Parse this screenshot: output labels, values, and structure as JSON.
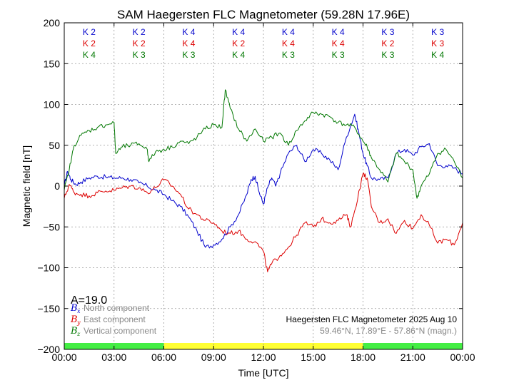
{
  "chart_data": {
    "type": "line",
    "title": "SAM Haegersten FLC Magnetometer (59.28N 17.96E)",
    "xlabel": "Time [UTC]",
    "ylabel": "Magnetic field [nT]",
    "xlim": [
      0,
      24
    ],
    "ylim": [
      -200,
      200
    ],
    "x_tick_labels": [
      "00:00",
      "03:00",
      "06:00",
      "09:00",
      "12:00",
      "15:00",
      "18:00",
      "21:00",
      "00:00"
    ],
    "y_tick_labels": [
      "200",
      "150",
      "100",
      "50",
      "0",
      "−50",
      "−100",
      "−150",
      "−200"
    ],
    "grid": true,
    "a_index": "A=19.0",
    "info_line1": "Haegersten FLC Magnetometer 2025 Aug 10",
    "info_line2": "59.46°N, 17.89°E - 57.86°N (magn.)",
    "k_indices": {
      "north": [
        "K 2",
        "K 2",
        "K 4",
        "K 4",
        "K 4",
        "K 4",
        "K 3",
        "K 3"
      ],
      "east": [
        "K 2",
        "K 2",
        "K 4",
        "K 2",
        "K 4",
        "K 4",
        "K 2",
        "K 3"
      ],
      "vertical": [
        "K 4",
        "K 3",
        "K 3",
        "K 4",
        "K 3",
        "K 3",
        "K 3",
        "K 4"
      ]
    },
    "activity_bar": [
      {
        "start": 0,
        "end": 6,
        "color": "#44ee44"
      },
      {
        "start": 6,
        "end": 18,
        "color": "#ffff33"
      },
      {
        "start": 18,
        "end": 24,
        "color": "#44ee44"
      }
    ],
    "series": [
      {
        "name": "North component",
        "symbol": "B",
        "subscript": "x",
        "color": "#0000cc",
        "x": [
          0,
          0.2,
          0.4,
          0.7,
          1,
          1.5,
          2,
          2.5,
          3,
          3.5,
          4,
          4.5,
          5,
          5.5,
          6,
          6.5,
          7,
          7.5,
          8,
          8.5,
          9,
          9.5,
          10,
          10.5,
          11,
          11.25,
          11.5,
          11.75,
          12,
          12.25,
          12.5,
          12.75,
          13,
          13.5,
          14,
          14.5,
          15,
          15.5,
          16,
          16.5,
          17,
          17.5,
          17.75,
          18,
          18.25,
          18.5,
          19,
          19.5,
          20,
          20.5,
          21,
          21.5,
          22,
          22.5,
          23,
          23.5,
          24
        ],
        "values": [
          0,
          18,
          8,
          2,
          5,
          10,
          12,
          11,
          10,
          10,
          8,
          4,
          0,
          -5,
          -10,
          -18,
          -25,
          -38,
          -55,
          -75,
          -72,
          -65,
          -50,
          -35,
          -10,
          8,
          12,
          -8,
          -22,
          -2,
          10,
          0,
          15,
          40,
          50,
          30,
          45,
          40,
          32,
          20,
          60,
          88,
          65,
          40,
          25,
          10,
          8,
          10,
          40,
          45,
          38,
          48,
          52,
          25,
          25,
          22,
          15
        ]
      },
      {
        "name": "East component",
        "symbol": "B",
        "subscript": "y",
        "color": "#dd0000",
        "x": [
          0,
          0.3,
          0.6,
          1,
          1.5,
          2,
          2.5,
          3,
          3.5,
          4,
          4.5,
          5,
          5.5,
          6,
          6.5,
          7,
          7.5,
          8,
          8.5,
          9,
          9.5,
          10,
          10.5,
          11,
          11.5,
          12,
          12.25,
          12.5,
          13,
          13.5,
          14,
          14.5,
          15,
          15.5,
          16,
          16.5,
          17,
          17.25,
          17.5,
          18,
          18.25,
          18.5,
          19,
          19.5,
          20,
          20.5,
          21,
          21.5,
          22,
          22.5,
          23,
          23.5,
          24
        ],
        "values": [
          -15,
          2,
          -8,
          -10,
          -12,
          -8,
          -6,
          -5,
          -2,
          0,
          -2,
          -8,
          -2,
          8,
          0,
          -10,
          -28,
          -35,
          -42,
          -45,
          -55,
          -58,
          -55,
          -65,
          -68,
          -80,
          -105,
          -95,
          -85,
          -75,
          -60,
          -45,
          -50,
          -40,
          -45,
          -42,
          -35,
          -50,
          -30,
          15,
          10,
          -25,
          -45,
          -40,
          -58,
          -42,
          -52,
          -35,
          -48,
          -70,
          -65,
          -72,
          -45
        ]
      },
      {
        "name": "Vertical component",
        "symbol": "B",
        "subscript": "z",
        "color": "#007700",
        "x": [
          0,
          0.3,
          0.6,
          1,
          1.5,
          2,
          2.5,
          3,
          3.1,
          3.5,
          4,
          4.5,
          5,
          5.1,
          5.5,
          6,
          6.5,
          7,
          7.5,
          8,
          8.5,
          9,
          9.5,
          9.7,
          10,
          10.5,
          11,
          11.5,
          12,
          12.5,
          13,
          13.5,
          14,
          14.5,
          15,
          15.5,
          16,
          16.5,
          17,
          17.5,
          18,
          18.25,
          18.5,
          19,
          19.5,
          20,
          20.5,
          21,
          21.25,
          21.5,
          22,
          22.5,
          23,
          23.5,
          24
        ],
        "values": [
          -5,
          20,
          50,
          62,
          68,
          72,
          75,
          78,
          40,
          48,
          50,
          52,
          45,
          30,
          42,
          45,
          48,
          55,
          52,
          60,
          70,
          75,
          72,
          118,
          95,
          70,
          55,
          70,
          55,
          60,
          65,
          50,
          68,
          80,
          90,
          88,
          85,
          78,
          75,
          72,
          55,
          48,
          35,
          20,
          5,
          40,
          30,
          20,
          -15,
          0,
          15,
          40,
          45,
          30,
          10
        ]
      }
    ]
  }
}
